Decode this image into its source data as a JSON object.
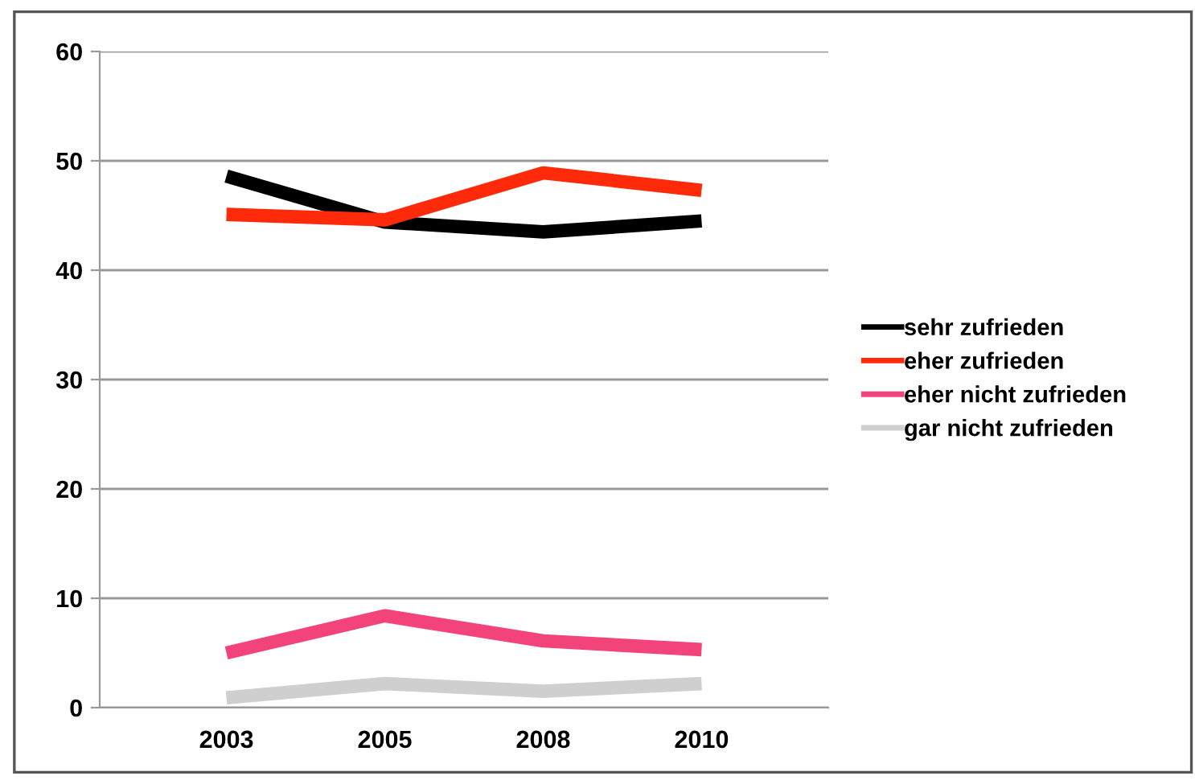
{
  "chart_data": {
    "type": "line",
    "categories": [
      "2003",
      "2005",
      "2008",
      "2010"
    ],
    "series": [
      {
        "name": "sehr zufrieden",
        "color": "#000000",
        "values": [
          48.6,
          44.4,
          43.5,
          44.5
        ]
      },
      {
        "name": "eher zufrieden",
        "color": "#ff2a0a",
        "values": [
          45.1,
          44.6,
          48.9,
          47.3
        ]
      },
      {
        "name": "eher nicht zufrieden",
        "color": "#f2437a",
        "values": [
          5.0,
          8.4,
          6.1,
          5.3
        ]
      },
      {
        "name": "gar nicht zufrieden",
        "color": "#cfcfcf",
        "values": [
          0.9,
          2.2,
          1.5,
          2.2
        ]
      }
    ],
    "ylim": [
      0,
      60
    ],
    "yticks": [
      0,
      10,
      20,
      30,
      40,
      50,
      60
    ],
    "grid": "y",
    "legend": "right",
    "marker": "none",
    "line_style": "solid"
  }
}
